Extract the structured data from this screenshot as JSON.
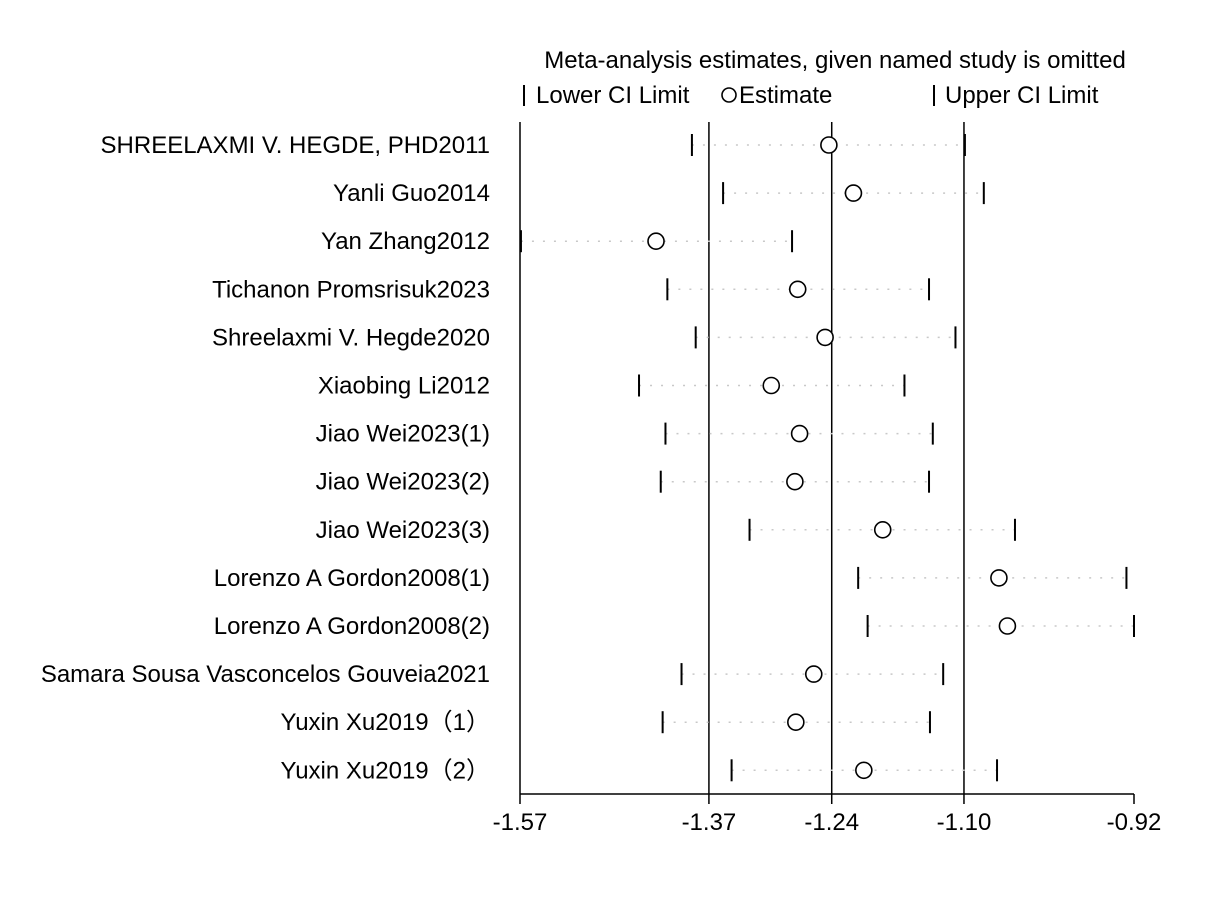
{
  "chart_data": {
    "type": "scatter",
    "title": "Meta-analysis estimates, given named study is omitted",
    "legend": {
      "placement": "top",
      "items": [
        {
          "symbol": "|",
          "label": "Lower CI Limit"
        },
        {
          "symbol": "○",
          "label": "Estimate"
        },
        {
          "symbol": "|",
          "label": "Upper CI Limit"
        }
      ]
    },
    "xlim": [
      -1.57,
      -0.92
    ],
    "x_ticks": [
      {
        "value": -1.57,
        "label": "-1.57"
      },
      {
        "value": -1.37,
        "label": "-1.37"
      },
      {
        "value": -1.24,
        "label": "-1.24"
      },
      {
        "value": -1.1,
        "label": "-1.10"
      },
      {
        "value": -0.92,
        "label": "-0.92"
      }
    ],
    "reference_lines": [
      -1.37,
      -1.24,
      -1.1
    ],
    "studies": [
      {
        "name": "SHREELAXMI V. HEGDE, PHD2011",
        "lower": -1.388,
        "estimate": -1.243,
        "upper": -1.099
      },
      {
        "name": "Yanli Guo2014",
        "lower": -1.355,
        "estimate": -1.217,
        "upper": -1.079
      },
      {
        "name": "Yan Zhang2012",
        "lower": -1.569,
        "estimate": -1.426,
        "upper": -1.282
      },
      {
        "name": "Tichanon Promsrisuk2023",
        "lower": -1.414,
        "estimate": -1.276,
        "upper": -1.137
      },
      {
        "name": "Shreelaxmi V. Hegde2020",
        "lower": -1.384,
        "estimate": -1.247,
        "upper": -1.109
      },
      {
        "name": "Xiaobing Li2012",
        "lower": -1.444,
        "estimate": -1.304,
        "upper": -1.163
      },
      {
        "name": "Jiao Wei2023(1)",
        "lower": -1.416,
        "estimate": -1.274,
        "upper": -1.133
      },
      {
        "name": "Jiao Wei2023(2)",
        "lower": -1.421,
        "estimate": -1.279,
        "upper": -1.137
      },
      {
        "name": "Jiao Wei2023(3)",
        "lower": -1.327,
        "estimate": -1.186,
        "upper": -1.046
      },
      {
        "name": "Lorenzo A Gordon2008(1)",
        "lower": -1.212,
        "estimate": -1.063,
        "upper": -0.928
      },
      {
        "name": "Lorenzo A Gordon2008(2)",
        "lower": -1.202,
        "estimate": -1.054,
        "upper": -0.92
      },
      {
        "name": "Samara Sousa Vasconcelos Gouveia2021",
        "lower": -1.399,
        "estimate": -1.259,
        "upper": -1.122
      },
      {
        "name": "Yuxin  Xu2019（1）",
        "lower": -1.419,
        "estimate": -1.278,
        "upper": -1.136
      },
      {
        "name": "Yuxin  Xu2019（2）",
        "lower": -1.346,
        "estimate": -1.206,
        "upper": -1.065
      }
    ]
  }
}
